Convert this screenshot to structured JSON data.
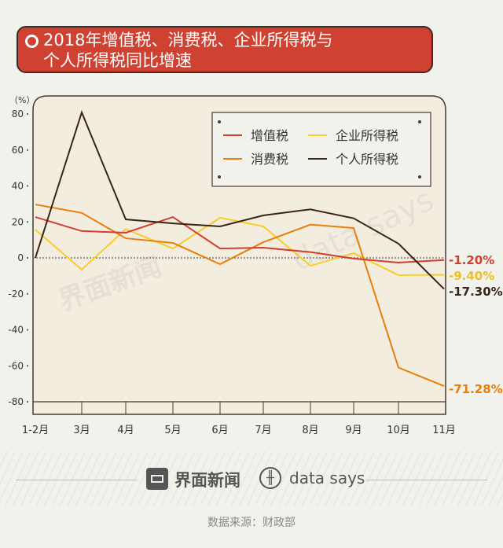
{
  "title": "2018年增值税、消费税、企业所得税与\n个人所得税同比增速",
  "footer": {
    "brand1": "界面新闻",
    "brand2": "data says",
    "source": "数据来源：财政部"
  },
  "chart_data": {
    "type": "line",
    "title": "2018年增值税、消费税、企业所得税与个人所得税同比增速",
    "ylabel": "（%）",
    "ylim": [
      -80,
      80
    ],
    "yticks": [
      80,
      60,
      40,
      20,
      0,
      -20,
      -40,
      -60,
      -80
    ],
    "categories": [
      "1-2月",
      "3月",
      "4月",
      "5月",
      "6月",
      "7月",
      "8月",
      "9月",
      "10月",
      "11月"
    ],
    "legend_position": "top-right",
    "grid": false,
    "series": [
      {
        "name": "增值税",
        "color": "#d13f2e",
        "values": [
          22.7,
          14.9,
          14.0,
          22.7,
          5.2,
          5.7,
          3.2,
          -0.4,
          -2.6,
          -1.2
        ],
        "end_label": "-1.20%"
      },
      {
        "name": "消费税",
        "color": "#e87d0a",
        "values": [
          29.7,
          25.0,
          10.9,
          8.3,
          -3.5,
          8.7,
          18.5,
          16.6,
          -61.0,
          -71.28
        ],
        "end_label": "-71.28%"
      },
      {
        "name": "企业所得税",
        "color": "#f7cd2a",
        "values": [
          15.7,
          -6.5,
          16.0,
          5.2,
          22.3,
          17.5,
          -4.4,
          2.6,
          -9.6,
          -9.4
        ],
        "end_label": "-9.40%"
      },
      {
        "name": "个人所得税",
        "color": "#3a2418",
        "values": [
          0,
          80.9,
          21.4,
          19.2,
          17.5,
          23.6,
          27.0,
          22.0,
          7.9,
          -17.3
        ],
        "end_label": "-17.30%"
      }
    ]
  }
}
